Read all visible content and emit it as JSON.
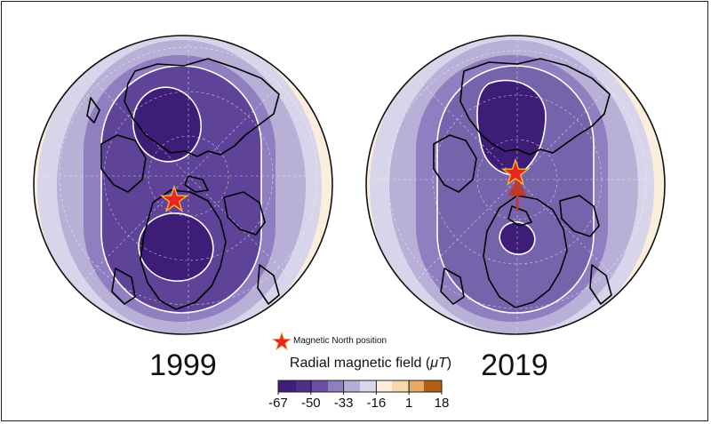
{
  "maps": [
    {
      "year": "1999"
    },
    {
      "year": "2019"
    }
  ],
  "legend": {
    "marker_label": "Magnetic North position",
    "colorbar_title_prefix": "Radial magnetic field (",
    "colorbar_title_unit": "μT",
    "colorbar_title_suffix": ")",
    "ticks": [
      "-67",
      "-50",
      "-33",
      "-16",
      "1",
      "18"
    ]
  },
  "colors": {
    "deep_purple": "#3f1d7a",
    "mid_purple": "#5a3d96",
    "purple": "#7a62ad",
    "lavender": "#a99fcc",
    "pale_lavender": "#d0cce4",
    "pale_orange": "#f6d8ac",
    "orange": "#eaa962",
    "brown": "#b35f14",
    "star": "#e8261e"
  }
}
